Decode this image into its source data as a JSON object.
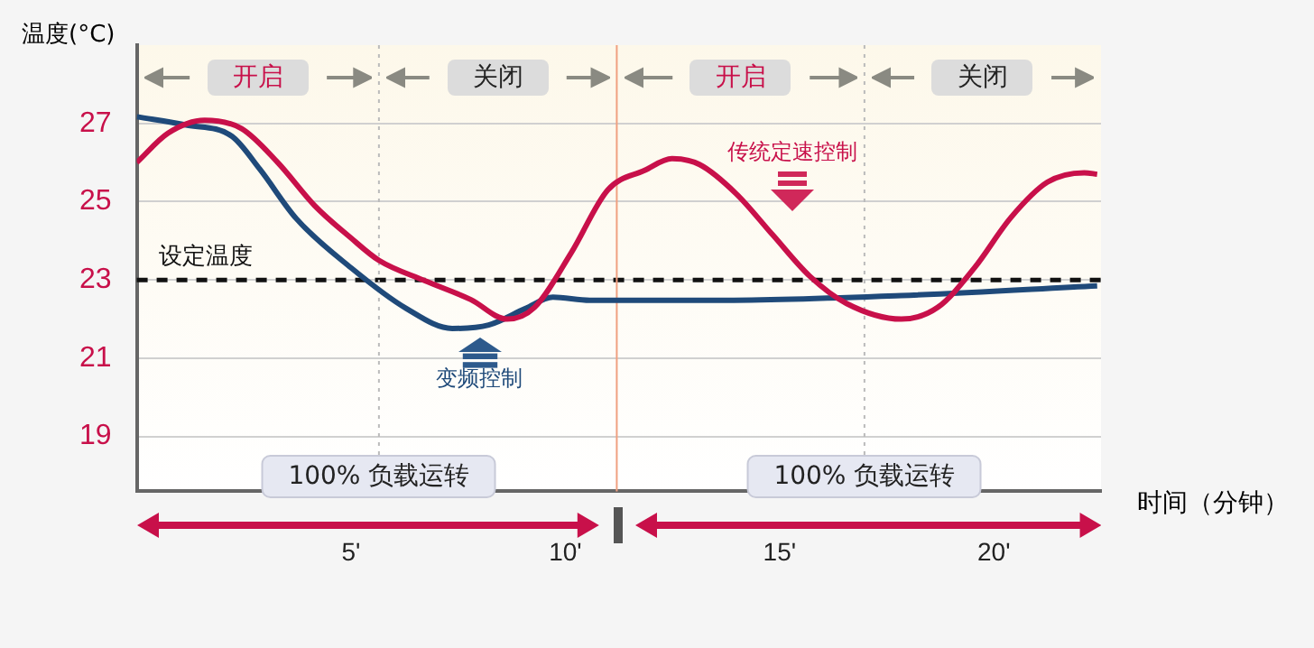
{
  "chart_data": {
    "type": "line",
    "ylabel": "温度(°C)",
    "xlabel": "时间（分钟）",
    "xlim": [
      0,
      22.5
    ],
    "xticks": [
      {
        "value": 5,
        "label": "5'"
      },
      {
        "value": 10,
        "label": "10'"
      },
      {
        "value": 15,
        "label": "15'"
      },
      {
        "value": 20,
        "label": "20'"
      }
    ],
    "ylim": [
      17.6,
      29
    ],
    "yticks": [
      19,
      21,
      23,
      25,
      27
    ],
    "grid": "y",
    "legend": false,
    "marker": "none",
    "line_style": "solid",
    "series": [
      {
        "name": "传统定速控制",
        "color": "#c8104a",
        "x": [
          0,
          0.73,
          1.58,
          2.44,
          3.29,
          4.15,
          5.0,
          5.65,
          6.72,
          7.79,
          8.64,
          9.28,
          10.14,
          10.99,
          11.85,
          12.49,
          13.13,
          13.99,
          14.84,
          15.7,
          16.56,
          17.84,
          18.69,
          19.54,
          20.4,
          21.25,
          22.11,
          22.41
        ],
        "values": [
          26.0,
          26.75,
          27.08,
          26.87,
          26.0,
          24.9,
          24.07,
          23.5,
          22.98,
          22.5,
          22.0,
          22.3,
          23.7,
          25.3,
          25.8,
          26.1,
          25.95,
          25.2,
          24.15,
          23.1,
          22.4,
          22.0,
          22.3,
          23.3,
          24.6,
          25.5,
          25.74,
          25.7
        ]
      },
      {
        "name": "变频控制",
        "color": "#1f4a7a",
        "x": [
          0,
          1.15,
          2.22,
          2.87,
          3.72,
          5.0,
          6.29,
          7.36,
          8.21,
          9.07,
          9.71,
          10.57,
          13.56,
          17.84,
          22.41
        ],
        "values": [
          27.17,
          26.96,
          26.67,
          25.83,
          24.57,
          23.31,
          22.27,
          21.76,
          21.85,
          22.27,
          22.56,
          22.48,
          22.48,
          22.6,
          22.85
        ]
      }
    ],
    "ref_lines": [
      {
        "axis": "y",
        "value": 23,
        "label": "设定温度",
        "color": "#111111",
        "line_style": "dashed"
      },
      {
        "axis": "x",
        "value": 5.65,
        "color": "#bbbbbb",
        "line_style": "dotted"
      },
      {
        "axis": "x",
        "value": 11.2,
        "color": "#f0a080",
        "line_style": "solid"
      },
      {
        "axis": "x",
        "value": 16.98,
        "color": "#bbbbbb",
        "line_style": "dotted"
      }
    ],
    "annotations": [
      "开启",
      "关闭",
      "开启",
      "关闭",
      "100% 负载运转",
      "100% 负载运转"
    ]
  }
}
